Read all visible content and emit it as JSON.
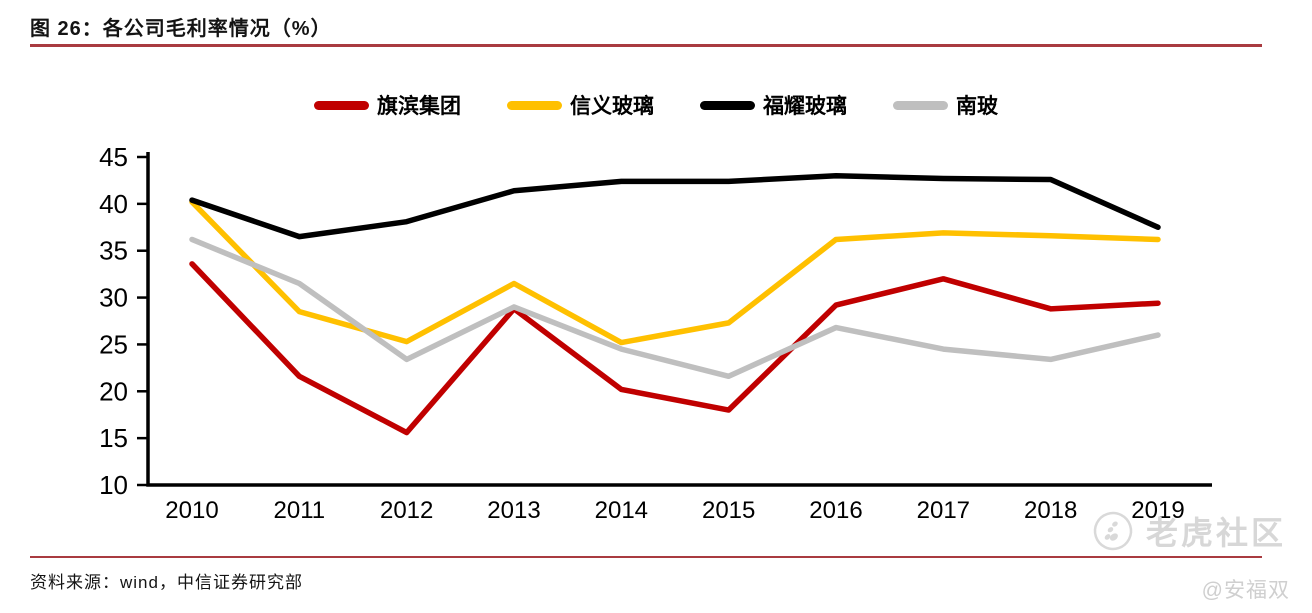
{
  "title": "图 26：各公司毛利率情况（%）",
  "source_note": "资料来源：wind，中信证券研究部",
  "watermark": {
    "community": "老虎社区",
    "user": "@安福双",
    "color": "#d7d7d7"
  },
  "accent_color": "#A93B40",
  "chart_data": {
    "type": "line",
    "title": "图 26：各公司毛利率情况（%）",
    "xlabel": "",
    "ylabel": "",
    "categories": [
      "2010",
      "2011",
      "2012",
      "2013",
      "2014",
      "2015",
      "2016",
      "2017",
      "2018",
      "2019"
    ],
    "ylim": [
      10,
      45
    ],
    "yticks": [
      10,
      15,
      20,
      25,
      30,
      35,
      40,
      45
    ],
    "grid": false,
    "legend_position": "top",
    "series": [
      {
        "name": "旗滨集团",
        "color": "#C00000",
        "values": [
          33.6,
          21.6,
          15.6,
          28.8,
          20.2,
          18.0,
          29.2,
          32.0,
          28.8,
          29.4
        ]
      },
      {
        "name": "信义玻璃",
        "color": "#FFC000",
        "values": [
          40.2,
          28.5,
          25.3,
          31.5,
          25.2,
          27.3,
          36.2,
          36.9,
          36.6,
          36.2
        ]
      },
      {
        "name": "福耀玻璃",
        "color": "#000000",
        "values": [
          40.4,
          36.5,
          38.1,
          41.4,
          42.4,
          42.4,
          43.0,
          42.7,
          42.6,
          37.5
        ]
      },
      {
        "name": "南玻",
        "color": "#BFBFBF",
        "values": [
          36.2,
          31.5,
          23.4,
          29.0,
          24.5,
          21.6,
          26.8,
          24.5,
          23.4,
          26.0
        ]
      }
    ]
  }
}
